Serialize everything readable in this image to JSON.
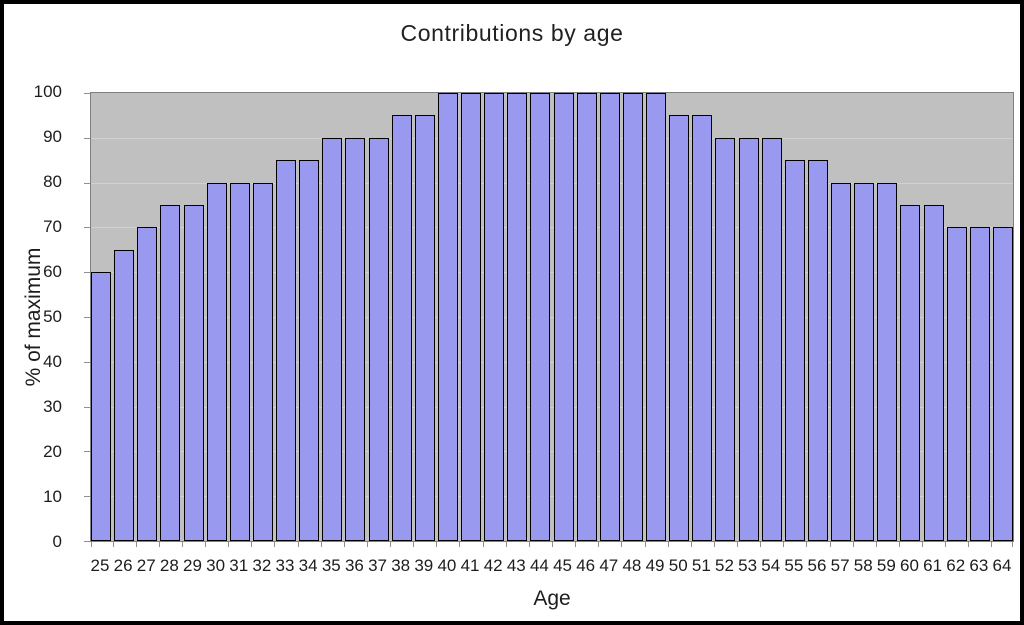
{
  "chart_data": {
    "type": "bar",
    "title": "Contributions by age",
    "xlabel": "Age",
    "ylabel": "% of maximum",
    "categories": [
      "25",
      "26",
      "27",
      "28",
      "29",
      "30",
      "31",
      "32",
      "33",
      "34",
      "35",
      "36",
      "37",
      "38",
      "39",
      "40",
      "41",
      "42",
      "43",
      "44",
      "45",
      "46",
      "47",
      "48",
      "49",
      "50",
      "51",
      "52",
      "53",
      "54",
      "55",
      "56",
      "57",
      "58",
      "59",
      "60",
      "61",
      "62",
      "63",
      "64"
    ],
    "values": [
      60,
      65,
      70,
      75,
      75,
      80,
      80,
      80,
      85,
      85,
      90,
      90,
      90,
      95,
      95,
      100,
      100,
      100,
      100,
      100,
      100,
      100,
      100,
      100,
      100,
      95,
      95,
      90,
      90,
      90,
      85,
      85,
      80,
      80,
      80,
      75,
      75,
      70,
      70,
      70
    ],
    "ylim": [
      0,
      100
    ],
    "ytick_step": 10,
    "grid": "horizontal",
    "legend_position": "none",
    "colors": {
      "bar_fill": "#9999f0",
      "bar_border": "#000000",
      "plot_background": "#c0c0c0",
      "plot_border": "#7f7f7f",
      "gridline": "#d2d2d2",
      "tick_mark": "#8f8f8f",
      "page_background": "#ffffff",
      "outer_border": "#000000",
      "text": "#1d1d1d"
    }
  }
}
